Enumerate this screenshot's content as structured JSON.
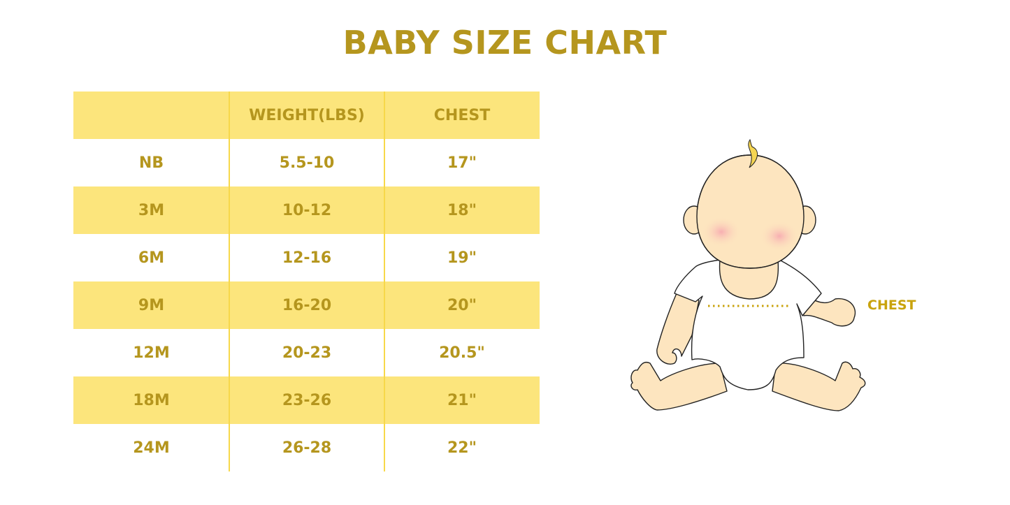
{
  "title": "BABY SIZE CHART",
  "table": {
    "headers": [
      "",
      "WEIGHT(LBS)",
      "CHEST"
    ],
    "rows": [
      [
        "NB",
        "5.5-10",
        "17\""
      ],
      [
        "3M",
        "10-12",
        "18\""
      ],
      [
        "6M",
        "12-16",
        "19\""
      ],
      [
        "9M",
        "16-20",
        "20\""
      ],
      [
        "12M",
        "20-23",
        "20.5\""
      ],
      [
        "18M",
        "23-26",
        "21\""
      ],
      [
        "24M",
        "26-28",
        "22\""
      ]
    ]
  },
  "illustration": {
    "chest_label": "CHEST"
  },
  "colors": {
    "text": "#b5961e",
    "band": "#fce57c",
    "skin": "#fde5bf"
  }
}
